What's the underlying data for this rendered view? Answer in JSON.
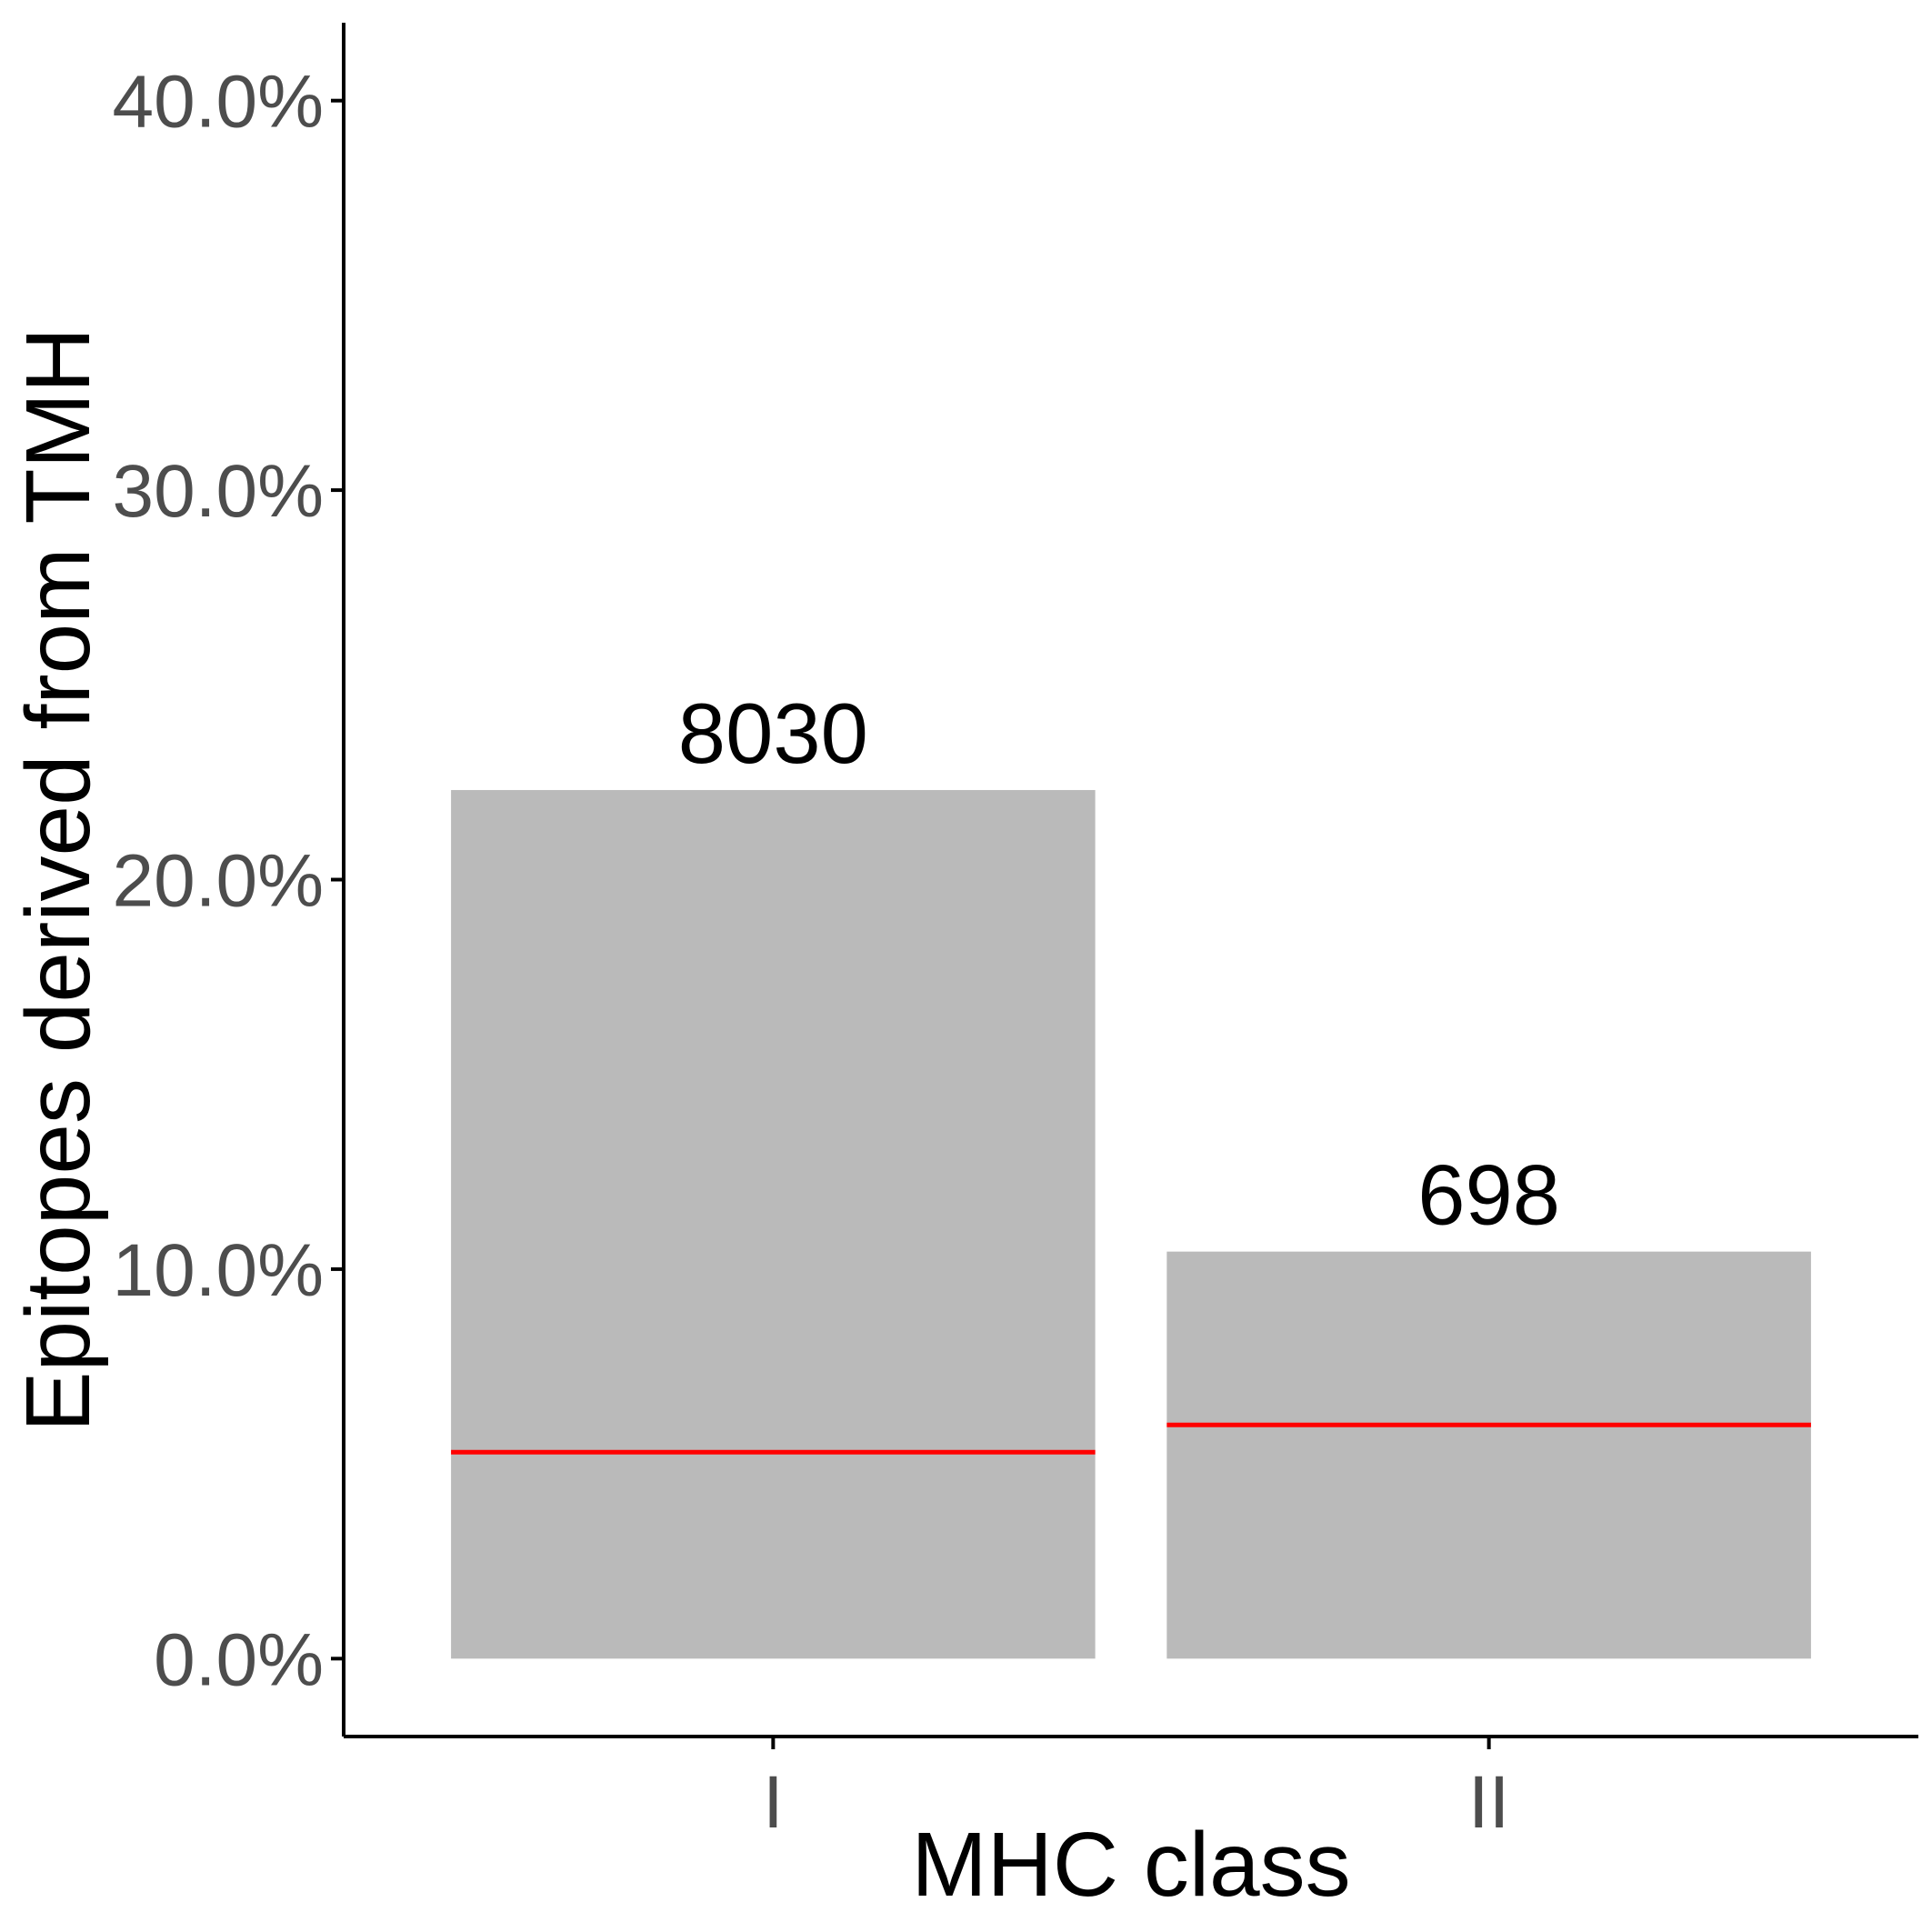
{
  "chart_data": {
    "type": "bar",
    "categories": [
      "I",
      "II"
    ],
    "values": [
      22.3,
      10.45
    ],
    "bar_labels": [
      "8030",
      "698"
    ],
    "reference_values": [
      5.3,
      6.0
    ],
    "xlabel": "MHC class",
    "ylabel": "Epitopes derived from TMH",
    "ylim": [
      -2.0,
      42.0
    ],
    "yticks": [
      0,
      10,
      20,
      30,
      40
    ],
    "ytick_labels": [
      "0.0%",
      "10.0%",
      "20.0%",
      "30.0%",
      "40.0%"
    ],
    "grid": false,
    "legend": "none",
    "colors": {
      "bar": "#bababa",
      "reference_line": "#ff0000",
      "axis": "#000000",
      "tick_text": "#4d4d4d"
    }
  }
}
